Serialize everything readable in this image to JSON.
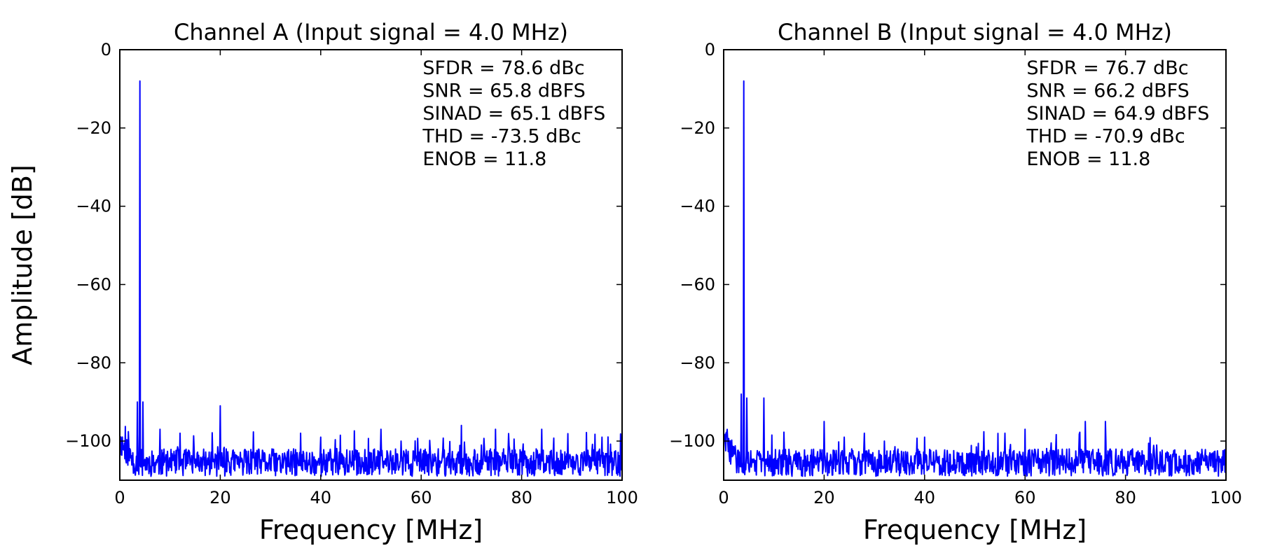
{
  "chart_data": [
    {
      "type": "line",
      "title": "Channel A (Input signal = 4.0 MHz)",
      "xlabel": "Frequency [MHz]",
      "ylabel": "Amplitude [dB]",
      "xlim": [
        0,
        100
      ],
      "ylim": [
        -110,
        0
      ],
      "xticks": [
        "0",
        "20",
        "40",
        "60",
        "80",
        "100"
      ],
      "yticks": [
        "0",
        "−20",
        "−40",
        "−60",
        "−80",
        "−100"
      ],
      "grid": false,
      "line_color": "#0000ff",
      "noise_floor_db": -105,
      "fundamental": {
        "x": 4.0,
        "y": -8
      },
      "peaks": [
        {
          "x": 3.5,
          "y": -90
        },
        {
          "x": 4.6,
          "y": -90
        },
        {
          "x": 8,
          "y": -97
        },
        {
          "x": 12,
          "y": -98
        },
        {
          "x": 20,
          "y": -91
        },
        {
          "x": 36,
          "y": -98
        },
        {
          "x": 40,
          "y": -99
        },
        {
          "x": 52,
          "y": -97
        },
        {
          "x": 56,
          "y": -100
        },
        {
          "x": 68,
          "y": -96
        },
        {
          "x": 72,
          "y": -101
        },
        {
          "x": 84,
          "y": -97
        },
        {
          "x": 96,
          "y": -99
        }
      ],
      "annotations": [
        "SFDR = 78.6 dBc",
        "SNR = 65.8 dBFS",
        "SINAD = 65.1 dBFS",
        "THD = -73.5 dBc",
        "ENOB = 11.8"
      ]
    },
    {
      "type": "line",
      "title": "Channel B (Input signal = 4.0 MHz)",
      "xlabel": "Frequency [MHz]",
      "ylabel": "",
      "xlim": [
        0,
        100
      ],
      "ylim": [
        -110,
        0
      ],
      "xticks": [
        "0",
        "20",
        "40",
        "60",
        "80",
        "100"
      ],
      "yticks": [
        "0",
        "−20",
        "−40",
        "−60",
        "−80",
        "−100"
      ],
      "grid": false,
      "line_color": "#0000ff",
      "noise_floor_db": -105,
      "fundamental": {
        "x": 4.0,
        "y": -8
      },
      "peaks": [
        {
          "x": 3.5,
          "y": -88
        },
        {
          "x": 4.6,
          "y": -89
        },
        {
          "x": 8,
          "y": -89
        },
        {
          "x": 20,
          "y": -95
        },
        {
          "x": 24,
          "y": -99
        },
        {
          "x": 28,
          "y": -98
        },
        {
          "x": 32,
          "y": -100
        },
        {
          "x": 40,
          "y": -99
        },
        {
          "x": 56,
          "y": -98
        },
        {
          "x": 60,
          "y": -97
        },
        {
          "x": 72,
          "y": -95
        },
        {
          "x": 76,
          "y": -95
        },
        {
          "x": 100,
          "y": -101
        }
      ],
      "annotations": [
        "SFDR = 76.7 dBc",
        "SNR = 66.2 dBFS",
        "SINAD = 64.9 dBFS",
        "THD = -70.9 dBc",
        "ENOB = 11.8"
      ]
    }
  ]
}
